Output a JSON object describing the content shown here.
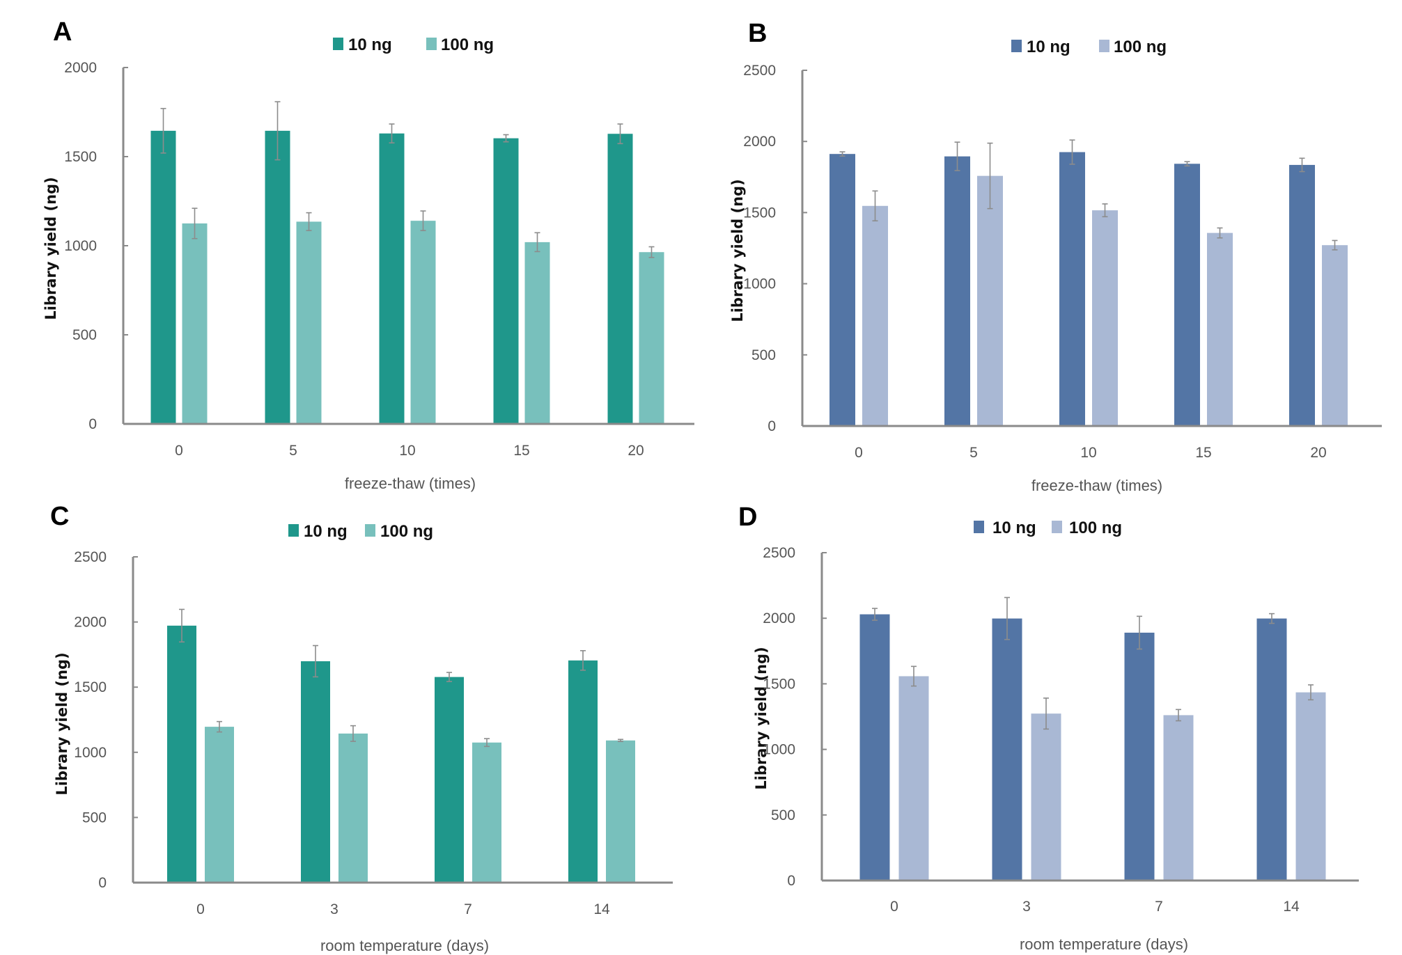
{
  "colors": {
    "teal_dark": "#1f978b",
    "teal_light": "#78c0bc",
    "blue_dark": "#5375a5",
    "blue_light": "#a9b8d4"
  },
  "chart_data": [
    {
      "panel": "A",
      "type": "bar",
      "title": "",
      "xlabel": "freeze-thaw (times)",
      "ylabel": "Library yield (ng)",
      "categories": [
        "0",
        "5",
        "10",
        "15",
        "20"
      ],
      "ylim": [
        0,
        2000
      ],
      "yticks": [
        0,
        500,
        1000,
        1500,
        2000
      ],
      "legend_position": "top-center",
      "grid": false,
      "series": [
        {
          "name": "10 ng",
          "color": "#1f978b",
          "values": [
            1645,
            1645,
            1630,
            1603,
            1628
          ],
          "errors": [
            125,
            163,
            53,
            20,
            55
          ]
        },
        {
          "name": "100 ng",
          "color": "#78c0bc",
          "values": [
            1125,
            1135,
            1140,
            1020,
            964
          ],
          "errors": [
            85,
            50,
            55,
            53,
            30
          ]
        }
      ]
    },
    {
      "panel": "B",
      "type": "bar",
      "title": "",
      "xlabel": "freeze-thaw (times)",
      "ylabel": "Library yield (ng)",
      "categories": [
        "0",
        "5",
        "10",
        "15",
        "20"
      ],
      "ylim": [
        0,
        2500
      ],
      "yticks": [
        0,
        500,
        1000,
        1500,
        2000,
        2500
      ],
      "legend_position": "top-center",
      "grid": false,
      "series": [
        {
          "name": "10 ng",
          "color": "#5375a5",
          "values": [
            1912,
            1895,
            1925,
            1843,
            1835
          ],
          "errors": [
            15,
            100,
            85,
            15,
            47
          ]
        },
        {
          "name": "100 ng",
          "color": "#a9b8d4",
          "values": [
            1547,
            1758,
            1516,
            1357,
            1271
          ],
          "errors": [
            105,
            230,
            45,
            35,
            33
          ]
        }
      ]
    },
    {
      "panel": "C",
      "type": "bar",
      "title": "",
      "xlabel": "room temperature (days)",
      "ylabel": "Library yield (ng)",
      "categories": [
        "0",
        "3",
        "7",
        "14"
      ],
      "ylim": [
        0,
        2500
      ],
      "yticks": [
        0,
        500,
        1000,
        1500,
        2000,
        2500
      ],
      "legend_position": "top-center",
      "grid": false,
      "series": [
        {
          "name": "10 ng",
          "color": "#1f978b",
          "values": [
            1972,
            1699,
            1578,
            1705
          ],
          "errors": [
            125,
            120,
            35,
            75
          ]
        },
        {
          "name": "100 ng",
          "color": "#78c0bc",
          "values": [
            1196,
            1144,
            1075,
            1091
          ],
          "errors": [
            40,
            60,
            30,
            8
          ]
        }
      ]
    },
    {
      "panel": "D",
      "type": "bar",
      "title": "",
      "xlabel": "room temperature (days)",
      "ylabel": "Library yield (ng)",
      "categories": [
        "0",
        "3",
        "7",
        "14"
      ],
      "ylim": [
        0,
        2500
      ],
      "yticks": [
        0,
        500,
        1000,
        1500,
        2000,
        2500
      ],
      "legend_position": "top-center",
      "grid": false,
      "series": [
        {
          "name": "10 ng",
          "color": "#5375a5",
          "values": [
            2030,
            1998,
            1890,
            1998
          ],
          "errors": [
            45,
            160,
            125,
            37
          ]
        },
        {
          "name": "100 ng",
          "color": "#a9b8d4",
          "values": [
            1558,
            1273,
            1261,
            1435
          ],
          "errors": [
            75,
            118,
            43,
            57
          ]
        }
      ]
    }
  ]
}
